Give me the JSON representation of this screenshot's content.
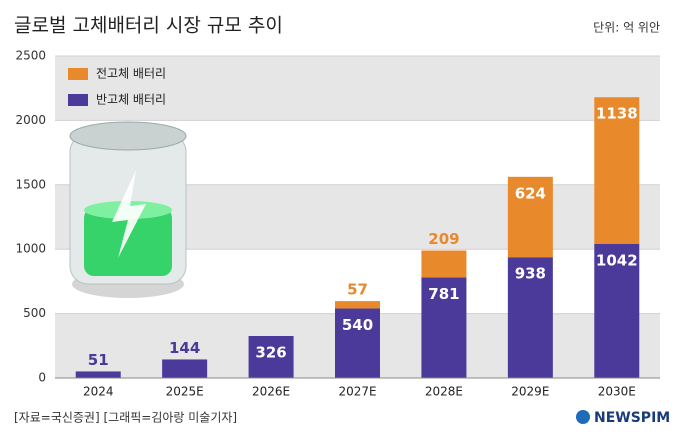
{
  "chart_data": {
    "type": "stacked_bar",
    "title": "글로벌 고체배터리 시장 규모 추이",
    "unit": "단위: 억 위안",
    "categories": [
      "2024",
      "2025E",
      "2026E",
      "2027E",
      "2028E",
      "2029E",
      "2030E"
    ],
    "series": [
      {
        "name": "반고체 배터리",
        "color": "#4b3a99",
        "values": [
          51,
          144,
          326,
          540,
          781,
          938,
          1042
        ]
      },
      {
        "name": "전고체 배터리",
        "color": "#e8892b",
        "values": [
          null,
          null,
          null,
          57,
          209,
          624,
          1138
        ]
      }
    ],
    "ylim": [
      0,
      2500
    ],
    "yticks": [
      0,
      500,
      1000,
      1500,
      2000,
      2500
    ],
    "grid": true,
    "source": "[자료=국신증권] [그래픽=김아랑 미술기자]",
    "brand": "NEWSPIM"
  }
}
